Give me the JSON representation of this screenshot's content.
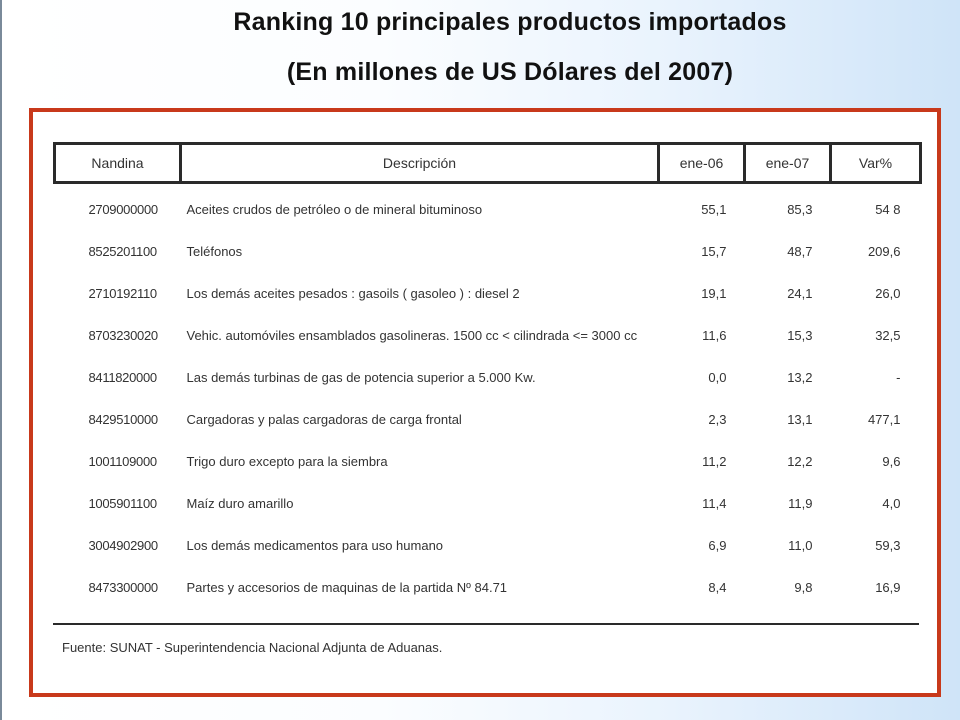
{
  "title": {
    "line1": "Ranking 10 principales productos importados",
    "line2": "(En millones de US Dólares del 2007)"
  },
  "table": {
    "headers": [
      "Nandina",
      "Descripción",
      "ene-06",
      "ene-07",
      "Var%"
    ],
    "rows": [
      {
        "code": "2709000000",
        "desc": "Aceites crudos de petróleo o de mineral bituminoso",
        "v06": "55,1",
        "v07": "85,3",
        "var": "54 8"
      },
      {
        "code": "8525201100",
        "desc": "Teléfonos",
        "v06": "15,7",
        "v07": "48,7",
        "var": "209,6"
      },
      {
        "code": "2710192110",
        "desc": "Los demás aceites pesados : gasoils ( gasoleo ) : diesel 2",
        "v06": "19,1",
        "v07": "24,1",
        "var": "26,0"
      },
      {
        "code": "8703230020",
        "desc": "Vehic. automóviles ensamblados gasolineras. 1500 cc < cilindrada <= 3000 cc",
        "v06": "11,6",
        "v07": "15,3",
        "var": "32,5"
      },
      {
        "code": "8411820000",
        "desc": "Las demás turbinas de gas de potencia superior a 5.000 Kw.",
        "v06": "0,0",
        "v07": "13,2",
        "var": "-"
      },
      {
        "code": "8429510000",
        "desc": "Cargadoras y palas cargadoras de carga frontal",
        "v06": "2,3",
        "v07": "13,1",
        "var": "477,1"
      },
      {
        "code": "1001109000",
        "desc": "Trigo duro excepto para la siembra",
        "v06": "11,2",
        "v07": "12,2",
        "var": "9,6"
      },
      {
        "code": "1005901100",
        "desc": "Maíz duro amarillo",
        "v06": "11,4",
        "v07": "11,9",
        "var": "4,0"
      },
      {
        "code": "3004902900",
        "desc": "Los demás medicamentos para uso humano",
        "v06": "6,9",
        "v07": "11,0",
        "var": "59,3"
      },
      {
        "code": "8473300000",
        "desc": "Partes y accesorios de maquinas de la partida Nº 84.71",
        "v06": "8,4",
        "v07": "9,8",
        "var": "16,9"
      }
    ]
  },
  "source": "Fuente:  SUNAT - Superintendencia Nacional Adjunta de Aduanas."
}
